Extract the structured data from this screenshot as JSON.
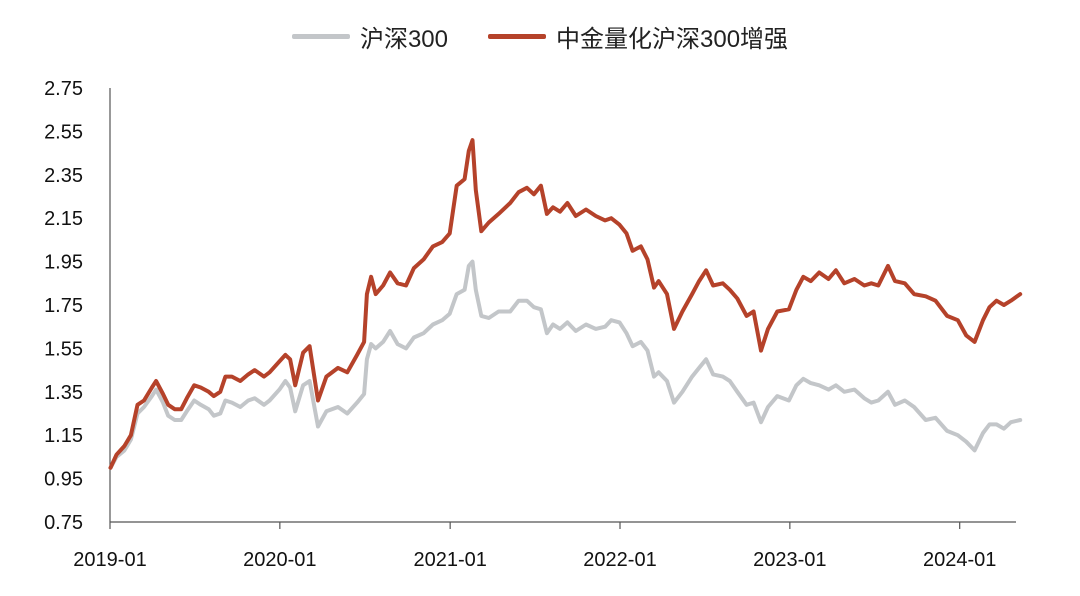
{
  "chart_data": {
    "type": "line",
    "title": "",
    "xlabel": "",
    "ylabel": "",
    "ylim": [
      0.75,
      2.75
    ],
    "yticks": [
      "0.75",
      "0.95",
      "1.15",
      "1.35",
      "1.55",
      "1.75",
      "1.95",
      "2.15",
      "2.35",
      "2.55",
      "2.75"
    ],
    "xlim": [
      "2019-01",
      "2024-05"
    ],
    "xticks": [
      "2019-01",
      "2020-01",
      "2021-01",
      "2022-01",
      "2023-01",
      "2024-01"
    ],
    "grid": false,
    "legend_position": "top-center",
    "series": [
      {
        "name": "沪深300",
        "color": "#c3c6c9",
        "points": [
          [
            "2019-01-02",
            1.0
          ],
          [
            "2019-01-15",
            1.05
          ],
          [
            "2019-02-01",
            1.08
          ],
          [
            "2019-02-15",
            1.13
          ],
          [
            "2019-03-01",
            1.25
          ],
          [
            "2019-03-15",
            1.28
          ],
          [
            "2019-04-01",
            1.33
          ],
          [
            "2019-04-10",
            1.36
          ],
          [
            "2019-04-25",
            1.3
          ],
          [
            "2019-05-06",
            1.24
          ],
          [
            "2019-05-20",
            1.22
          ],
          [
            "2019-06-03",
            1.22
          ],
          [
            "2019-06-15",
            1.26
          ],
          [
            "2019-07-01",
            1.31
          ],
          [
            "2019-07-15",
            1.29
          ],
          [
            "2019-08-01",
            1.27
          ],
          [
            "2019-08-12",
            1.24
          ],
          [
            "2019-08-26",
            1.25
          ],
          [
            "2019-09-06",
            1.31
          ],
          [
            "2019-09-20",
            1.3
          ],
          [
            "2019-10-08",
            1.28
          ],
          [
            "2019-10-25",
            1.31
          ],
          [
            "2019-11-08",
            1.32
          ],
          [
            "2019-11-28",
            1.29
          ],
          [
            "2019-12-10",
            1.31
          ],
          [
            "2019-12-31",
            1.36
          ],
          [
            "2020-01-13",
            1.4
          ],
          [
            "2020-01-23",
            1.37
          ],
          [
            "2020-02-03",
            1.26
          ],
          [
            "2020-02-20",
            1.38
          ],
          [
            "2020-03-05",
            1.4
          ],
          [
            "2020-03-23",
            1.19
          ],
          [
            "2020-04-10",
            1.26
          ],
          [
            "2020-05-05",
            1.28
          ],
          [
            "2020-05-25",
            1.25
          ],
          [
            "2020-06-15",
            1.3
          ],
          [
            "2020-06-30",
            1.34
          ],
          [
            "2020-07-06",
            1.5
          ],
          [
            "2020-07-15",
            1.57
          ],
          [
            "2020-07-25",
            1.55
          ],
          [
            "2020-08-10",
            1.58
          ],
          [
            "2020-08-25",
            1.63
          ],
          [
            "2020-09-10",
            1.57
          ],
          [
            "2020-09-28",
            1.55
          ],
          [
            "2020-10-15",
            1.6
          ],
          [
            "2020-11-05",
            1.62
          ],
          [
            "2020-11-25",
            1.66
          ],
          [
            "2020-12-15",
            1.68
          ],
          [
            "2020-12-31",
            1.71
          ],
          [
            "2021-01-15",
            1.8
          ],
          [
            "2021-02-01",
            1.82
          ],
          [
            "2021-02-10",
            1.93
          ],
          [
            "2021-02-18",
            1.95
          ],
          [
            "2021-02-25",
            1.82
          ],
          [
            "2021-03-09",
            1.7
          ],
          [
            "2021-03-25",
            1.69
          ],
          [
            "2021-04-15",
            1.72
          ],
          [
            "2021-05-10",
            1.72
          ],
          [
            "2021-05-28",
            1.77
          ],
          [
            "2021-06-15",
            1.77
          ],
          [
            "2021-06-30",
            1.74
          ],
          [
            "2021-07-15",
            1.73
          ],
          [
            "2021-07-28",
            1.62
          ],
          [
            "2021-08-10",
            1.66
          ],
          [
            "2021-08-25",
            1.64
          ],
          [
            "2021-09-10",
            1.67
          ],
          [
            "2021-09-28",
            1.63
          ],
          [
            "2021-10-20",
            1.66
          ],
          [
            "2021-11-10",
            1.64
          ],
          [
            "2021-11-30",
            1.65
          ],
          [
            "2021-12-13",
            1.68
          ],
          [
            "2021-12-31",
            1.67
          ],
          [
            "2022-01-15",
            1.62
          ],
          [
            "2022-01-28",
            1.56
          ],
          [
            "2022-02-15",
            1.58
          ],
          [
            "2022-03-01",
            1.54
          ],
          [
            "2022-03-15",
            1.42
          ],
          [
            "2022-03-25",
            1.44
          ],
          [
            "2022-04-12",
            1.4
          ],
          [
            "2022-04-27",
            1.3
          ],
          [
            "2022-05-15",
            1.35
          ],
          [
            "2022-06-05",
            1.42
          ],
          [
            "2022-06-20",
            1.46
          ],
          [
            "2022-07-05",
            1.5
          ],
          [
            "2022-07-20",
            1.43
          ],
          [
            "2022-08-10",
            1.42
          ],
          [
            "2022-08-25",
            1.4
          ],
          [
            "2022-09-10",
            1.35
          ],
          [
            "2022-09-30",
            1.29
          ],
          [
            "2022-10-15",
            1.3
          ],
          [
            "2022-10-31",
            1.21
          ],
          [
            "2022-11-15",
            1.28
          ],
          [
            "2022-12-05",
            1.33
          ],
          [
            "2022-12-30",
            1.31
          ],
          [
            "2023-01-15",
            1.38
          ],
          [
            "2023-01-30",
            1.41
          ],
          [
            "2023-02-15",
            1.39
          ],
          [
            "2023-03-05",
            1.38
          ],
          [
            "2023-03-25",
            1.36
          ],
          [
            "2023-04-10",
            1.38
          ],
          [
            "2023-04-28",
            1.35
          ],
          [
            "2023-05-20",
            1.36
          ],
          [
            "2023-06-10",
            1.32
          ],
          [
            "2023-06-25",
            1.3
          ],
          [
            "2023-07-10",
            1.31
          ],
          [
            "2023-07-31",
            1.35
          ],
          [
            "2023-08-15",
            1.29
          ],
          [
            "2023-09-05",
            1.31
          ],
          [
            "2023-09-25",
            1.28
          ],
          [
            "2023-10-20",
            1.22
          ],
          [
            "2023-11-10",
            1.23
          ],
          [
            "2023-12-05",
            1.17
          ],
          [
            "2023-12-28",
            1.15
          ],
          [
            "2024-01-15",
            1.12
          ],
          [
            "2024-02-02",
            1.08
          ],
          [
            "2024-02-20",
            1.16
          ],
          [
            "2024-03-05",
            1.2
          ],
          [
            "2024-03-20",
            1.2
          ],
          [
            "2024-04-05",
            1.18
          ],
          [
            "2024-04-20",
            1.21
          ],
          [
            "2024-05-10",
            1.22
          ]
        ]
      },
      {
        "name": "中金量化沪深300增强",
        "color": "#b5422a",
        "points": [
          [
            "2019-01-02",
            1.0
          ],
          [
            "2019-01-15",
            1.06
          ],
          [
            "2019-02-01",
            1.1
          ],
          [
            "2019-02-15",
            1.15
          ],
          [
            "2019-03-01",
            1.29
          ],
          [
            "2019-03-15",
            1.31
          ],
          [
            "2019-04-01",
            1.37
          ],
          [
            "2019-04-10",
            1.4
          ],
          [
            "2019-04-25",
            1.34
          ],
          [
            "2019-05-06",
            1.29
          ],
          [
            "2019-05-20",
            1.27
          ],
          [
            "2019-06-03",
            1.27
          ],
          [
            "2019-06-15",
            1.32
          ],
          [
            "2019-07-01",
            1.38
          ],
          [
            "2019-07-15",
            1.37
          ],
          [
            "2019-08-01",
            1.35
          ],
          [
            "2019-08-12",
            1.33
          ],
          [
            "2019-08-26",
            1.35
          ],
          [
            "2019-09-06",
            1.42
          ],
          [
            "2019-09-20",
            1.42
          ],
          [
            "2019-10-08",
            1.4
          ],
          [
            "2019-10-25",
            1.43
          ],
          [
            "2019-11-08",
            1.45
          ],
          [
            "2019-11-28",
            1.42
          ],
          [
            "2019-12-10",
            1.44
          ],
          [
            "2019-12-31",
            1.49
          ],
          [
            "2020-01-13",
            1.52
          ],
          [
            "2020-01-23",
            1.5
          ],
          [
            "2020-02-03",
            1.38
          ],
          [
            "2020-02-20",
            1.53
          ],
          [
            "2020-03-05",
            1.56
          ],
          [
            "2020-03-23",
            1.31
          ],
          [
            "2020-04-10",
            1.42
          ],
          [
            "2020-05-05",
            1.46
          ],
          [
            "2020-05-25",
            1.44
          ],
          [
            "2020-06-15",
            1.52
          ],
          [
            "2020-06-30",
            1.58
          ],
          [
            "2020-07-06",
            1.8
          ],
          [
            "2020-07-15",
            1.88
          ],
          [
            "2020-07-25",
            1.8
          ],
          [
            "2020-08-10",
            1.84
          ],
          [
            "2020-08-25",
            1.9
          ],
          [
            "2020-09-10",
            1.85
          ],
          [
            "2020-09-28",
            1.84
          ],
          [
            "2020-10-15",
            1.92
          ],
          [
            "2020-11-05",
            1.96
          ],
          [
            "2020-11-25",
            2.02
          ],
          [
            "2020-12-15",
            2.04
          ],
          [
            "2020-12-31",
            2.08
          ],
          [
            "2021-01-15",
            2.3
          ],
          [
            "2021-02-01",
            2.33
          ],
          [
            "2021-02-10",
            2.46
          ],
          [
            "2021-02-18",
            2.51
          ],
          [
            "2021-02-25",
            2.28
          ],
          [
            "2021-03-09",
            2.09
          ],
          [
            "2021-03-25",
            2.13
          ],
          [
            "2021-04-15",
            2.17
          ],
          [
            "2021-05-10",
            2.22
          ],
          [
            "2021-05-28",
            2.27
          ],
          [
            "2021-06-15",
            2.29
          ],
          [
            "2021-06-30",
            2.26
          ],
          [
            "2021-07-15",
            2.3
          ],
          [
            "2021-07-28",
            2.17
          ],
          [
            "2021-08-10",
            2.2
          ],
          [
            "2021-08-25",
            2.18
          ],
          [
            "2021-09-10",
            2.22
          ],
          [
            "2021-09-28",
            2.16
          ],
          [
            "2021-10-20",
            2.19
          ],
          [
            "2021-11-10",
            2.16
          ],
          [
            "2021-11-30",
            2.14
          ],
          [
            "2021-12-13",
            2.15
          ],
          [
            "2021-12-31",
            2.12
          ],
          [
            "2022-01-15",
            2.08
          ],
          [
            "2022-01-28",
            2.0
          ],
          [
            "2022-02-15",
            2.02
          ],
          [
            "2022-03-01",
            1.96
          ],
          [
            "2022-03-15",
            1.83
          ],
          [
            "2022-03-25",
            1.86
          ],
          [
            "2022-04-12",
            1.8
          ],
          [
            "2022-04-27",
            1.64
          ],
          [
            "2022-05-15",
            1.72
          ],
          [
            "2022-06-05",
            1.8
          ],
          [
            "2022-06-20",
            1.86
          ],
          [
            "2022-07-05",
            1.91
          ],
          [
            "2022-07-20",
            1.84
          ],
          [
            "2022-08-10",
            1.85
          ],
          [
            "2022-08-25",
            1.82
          ],
          [
            "2022-09-10",
            1.78
          ],
          [
            "2022-09-30",
            1.7
          ],
          [
            "2022-10-15",
            1.72
          ],
          [
            "2022-10-31",
            1.54
          ],
          [
            "2022-11-15",
            1.64
          ],
          [
            "2022-12-05",
            1.72
          ],
          [
            "2022-12-30",
            1.73
          ],
          [
            "2023-01-15",
            1.82
          ],
          [
            "2023-01-30",
            1.88
          ],
          [
            "2023-02-15",
            1.86
          ],
          [
            "2023-03-05",
            1.9
          ],
          [
            "2023-03-25",
            1.87
          ],
          [
            "2023-04-10",
            1.91
          ],
          [
            "2023-04-28",
            1.85
          ],
          [
            "2023-05-20",
            1.87
          ],
          [
            "2023-06-10",
            1.84
          ],
          [
            "2023-06-25",
            1.85
          ],
          [
            "2023-07-10",
            1.84
          ],
          [
            "2023-07-31",
            1.93
          ],
          [
            "2023-08-15",
            1.86
          ],
          [
            "2023-09-05",
            1.85
          ],
          [
            "2023-09-25",
            1.8
          ],
          [
            "2023-10-20",
            1.79
          ],
          [
            "2023-11-10",
            1.77
          ],
          [
            "2023-12-05",
            1.7
          ],
          [
            "2023-12-28",
            1.68
          ],
          [
            "2024-01-15",
            1.61
          ],
          [
            "2024-02-02",
            1.58
          ],
          [
            "2024-02-20",
            1.68
          ],
          [
            "2024-03-05",
            1.74
          ],
          [
            "2024-03-20",
            1.77
          ],
          [
            "2024-04-05",
            1.75
          ],
          [
            "2024-04-20",
            1.77
          ],
          [
            "2024-05-10",
            1.8
          ]
        ]
      }
    ]
  }
}
